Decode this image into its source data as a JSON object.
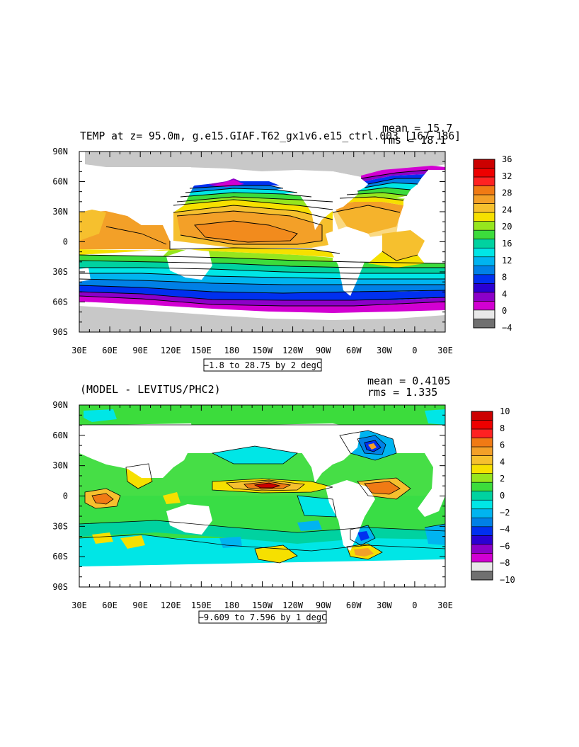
{
  "panels": [
    {
      "title": "TEMP at z=  95.0m, g.e15.GIAF.T62_gx1v6.e15_ctrl.003 [167-186]",
      "mean_label": "mean = 15.7",
      "rms_label": "rms = 18.1",
      "range_label": "−1.8 to 28.75 by 2 degC",
      "colorbar_ticks": [
        "36",
        "32",
        "28",
        "24",
        "20",
        "16",
        "12",
        "8",
        "4",
        "0",
        "−4"
      ],
      "colorbar_colors": [
        "#cc0000",
        "#ee0000",
        "#ff2222",
        "#f07a14",
        "#f3a028",
        "#f6c02e",
        "#f6e000",
        "#96e61e",
        "#3cdc3c",
        "#00d2a0",
        "#00e6e6",
        "#00b4f0",
        "#0080e6",
        "#0030f0",
        "#2a00d2",
        "#8c00c8",
        "#d200d2",
        "#e8e8e8",
        "#707070"
      ]
    },
    {
      "title": "(MODEL - LEVITUS/PHC2)",
      "mean_label": "mean = 0.4105",
      "rms_label": "rms = 1.335",
      "range_label": "−9.609 to 7.596 by 1 degC",
      "colorbar_ticks": [
        "10",
        "8",
        "6",
        "4",
        "2",
        "0",
        "−2",
        "−4",
        "−6",
        "−8",
        "−10"
      ],
      "colorbar_colors": [
        "#cc0000",
        "#ee0000",
        "#ff2222",
        "#f07a14",
        "#f3a028",
        "#f6c02e",
        "#f6e000",
        "#96e61e",
        "#3cdc3c",
        "#00d2a0",
        "#00e6e6",
        "#00b4f0",
        "#0080e6",
        "#0030f0",
        "#2a00d2",
        "#8c00c8",
        "#d200d2",
        "#e8e8e8",
        "#707070"
      ]
    }
  ],
  "x_ticks": [
    "30E",
    "60E",
    "90E",
    "120E",
    "150E",
    "180",
    "150W",
    "120W",
    "90W",
    "60W",
    "30W",
    "0",
    "30E"
  ],
  "y_ticks": [
    "90N",
    "60N",
    "30N",
    "0",
    "30S",
    "60S",
    "90S"
  ],
  "chart_data": [
    {
      "type": "heatmap",
      "title": "TEMP at z=  95.0m, g.e15.GIAF.T62_gx1v6.e15_ctrl.003 [167-186]",
      "xlim": [
        30,
        390
      ],
      "ylim": [
        -90,
        90
      ],
      "x_tick_labels": [
        "30E",
        "60E",
        "90E",
        "120E",
        "150E",
        "180",
        "150W",
        "120W",
        "90W",
        "60W",
        "30W",
        "0",
        "30E"
      ],
      "y_tick_labels": [
        "90N",
        "60N",
        "30N",
        "0",
        "30S",
        "60S",
        "90S"
      ],
      "color_levels": [
        -4,
        0,
        4,
        8,
        12,
        16,
        20,
        24,
        28,
        32,
        36
      ],
      "mean": 15.7,
      "rms": 18.1,
      "range": [
        -1.8,
        28.75
      ],
      "contour_interval": 2,
      "units": "degC"
    },
    {
      "type": "heatmap",
      "title": "(MODEL - LEVITUS/PHC2)",
      "xlim": [
        30,
        390
      ],
      "ylim": [
        -90,
        90
      ],
      "x_tick_labels": [
        "30E",
        "60E",
        "90E",
        "120E",
        "150E",
        "180",
        "150W",
        "120W",
        "90W",
        "60W",
        "30W",
        "0",
        "30E"
      ],
      "y_tick_labels": [
        "90N",
        "60N",
        "30N",
        "0",
        "30S",
        "60S",
        "90S"
      ],
      "color_levels": [
        -10,
        -8,
        -6,
        -4,
        -2,
        0,
        2,
        4,
        6,
        8,
        10
      ],
      "mean": 0.4105,
      "rms": 1.335,
      "range": [
        -9.609,
        7.596
      ],
      "contour_interval": 1,
      "units": "degC"
    }
  ]
}
